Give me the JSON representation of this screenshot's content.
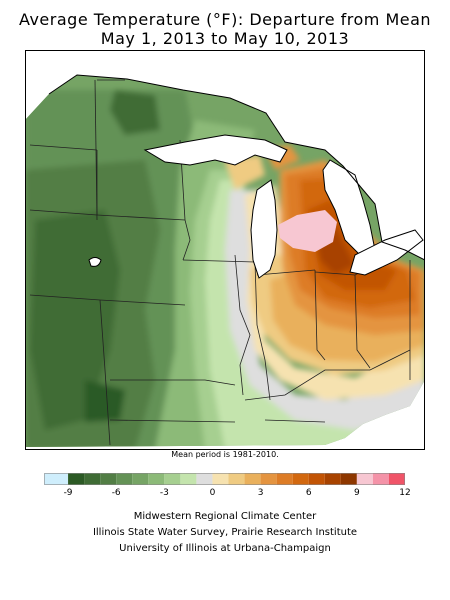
{
  "title_line1": "Average Temperature (°F): Departure from Mean",
  "title_line2": "May 1, 2013 to May 10, 2013",
  "mean_period_note": "Mean period is 1981-2010.",
  "legend": {
    "tick_labels": [
      "-9",
      "-6",
      "-3",
      "0",
      "3",
      "6",
      "9",
      "12"
    ],
    "tick_values": [
      -9,
      -6,
      -3,
      0,
      3,
      6,
      9,
      12
    ],
    "min": -10.5,
    "max": 12,
    "bins": [
      {
        "from": -10.5,
        "to": -9,
        "color": "#cfeefc"
      },
      {
        "from": -9,
        "to": -8,
        "color": "#2c5a25"
      },
      {
        "from": -8,
        "to": -7,
        "color": "#3f6c35"
      },
      {
        "from": -7,
        "to": -6,
        "color": "#527e45"
      },
      {
        "from": -6,
        "to": -5,
        "color": "#649256"
      },
      {
        "from": -5,
        "to": -4,
        "color": "#76a465"
      },
      {
        "from": -4,
        "to": -3,
        "color": "#8cba78"
      },
      {
        "from": -3,
        "to": -2,
        "color": "#a6cf90"
      },
      {
        "from": -2,
        "to": -1,
        "color": "#c4e4ad"
      },
      {
        "from": -1,
        "to": 0,
        "color": "#dedede"
      },
      {
        "from": 0,
        "to": 1,
        "color": "#f6e2b0"
      },
      {
        "from": 1,
        "to": 2,
        "color": "#efcb82"
      },
      {
        "from": 2,
        "to": 3,
        "color": "#e9b05c"
      },
      {
        "from": 3,
        "to": 4,
        "color": "#e49440"
      },
      {
        "from": 4,
        "to": 5,
        "color": "#dd7c26"
      },
      {
        "from": 5,
        "to": 6,
        "color": "#d2680f"
      },
      {
        "from": 6,
        "to": 7,
        "color": "#c25405"
      },
      {
        "from": 7,
        "to": 8,
        "color": "#a84300"
      },
      {
        "from": 8,
        "to": 9,
        "color": "#8e3700"
      },
      {
        "from": 9,
        "to": 10,
        "color": "#f7c7d2"
      },
      {
        "from": 10,
        "to": 11,
        "color": "#f493a8"
      },
      {
        "from": 11,
        "to": 12,
        "color": "#f05468"
      }
    ]
  },
  "credits": [
    "Midwestern Regional Climate Center",
    "Illinois State Water Survey, Prairie Research Institute",
    "University of Illinois at Urbana-Champaign"
  ],
  "colors": {
    "frame": "#000000",
    "lake": "#ffffff",
    "lake_outline": "#000000",
    "state_border": "#222222"
  }
}
